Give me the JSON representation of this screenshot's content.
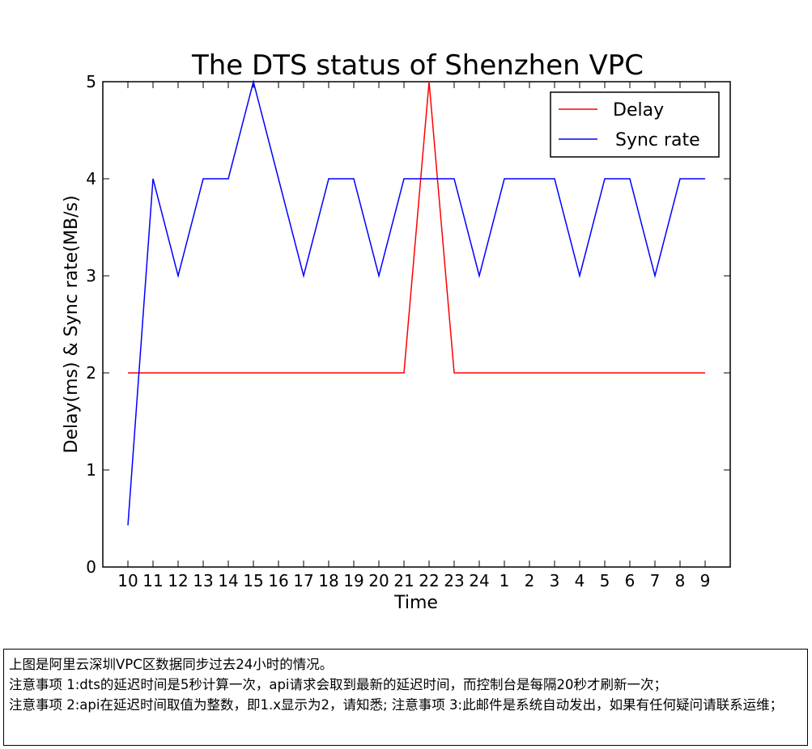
{
  "chart_data": {
    "type": "line",
    "title": "The DTS status of Shenzhen VPC",
    "xlabel": "Time",
    "ylabel": "Delay(ms) & Sync rate(MB/s)",
    "categories": [
      "10",
      "11",
      "12",
      "13",
      "14",
      "15",
      "16",
      "17",
      "18",
      "19",
      "20",
      "21",
      "22",
      "23",
      "24",
      "1",
      "2",
      "3",
      "4",
      "5",
      "6",
      "7",
      "8",
      "9"
    ],
    "ylim": [
      0,
      5
    ],
    "yticks": [
      "0",
      "1",
      "2",
      "3",
      "4",
      "5"
    ],
    "legend_position": "top-right",
    "grid": false,
    "series": [
      {
        "name": "Delay",
        "color": "#ff0000",
        "values": [
          2,
          2,
          2,
          2,
          2,
          2,
          2,
          2,
          2,
          2,
          2,
          2,
          5,
          2,
          2,
          2,
          2,
          2,
          2,
          2,
          2,
          2,
          2,
          2
        ]
      },
      {
        "name": "Sync rate",
        "color": "#0000ff",
        "values": [
          0.43,
          4,
          3,
          4,
          4,
          5,
          4,
          3,
          4,
          4,
          3,
          4,
          4,
          4,
          3,
          4,
          4,
          4,
          3,
          4,
          4,
          3,
          4,
          4
        ]
      }
    ]
  },
  "notes": {
    "lines": [
      "上图是阿里云深圳VPC区数据同步过去24小时的情况。",
      "注意事项 1:dts的延迟时间是5秒计算一次，api请求会取到最新的延迟时间，而控制台是每隔20秒才刷新一次；",
      "注意事项 2:api在延迟时间取值为整数，即1.x显示为2，请知悉; 注意事项 3:此邮件是系统自动发出，如果有任何疑问请联系运维；"
    ]
  }
}
